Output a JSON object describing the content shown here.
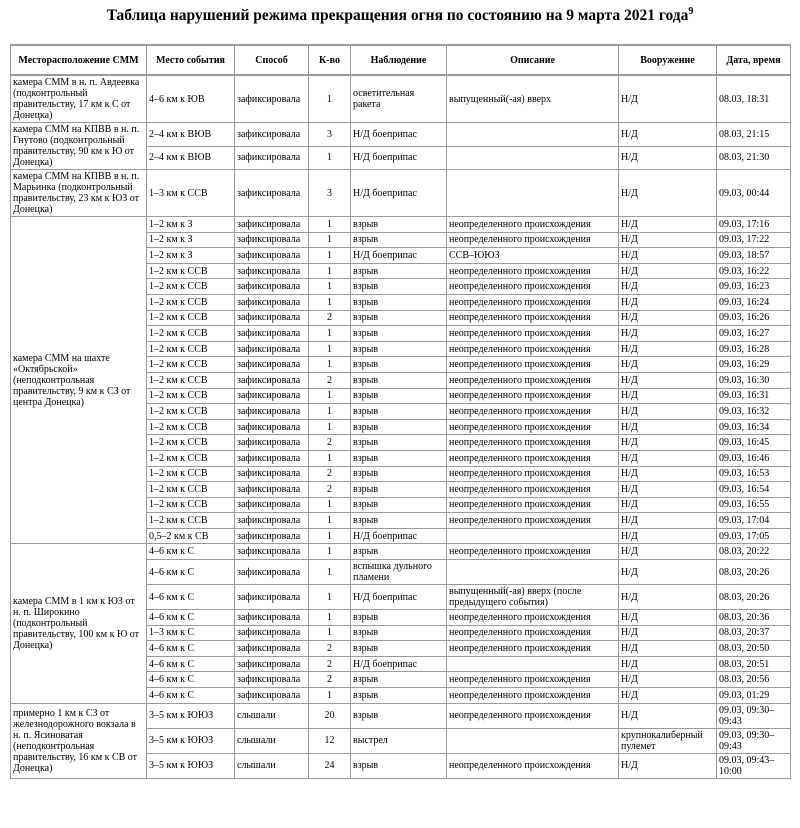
{
  "title": "Таблица нарушений режима прекращения огня по состоянию на 9 марта 2021 года",
  "title_note": "9",
  "headers": [
    "Месторасположение СММ",
    "Место события",
    "Способ",
    "К-во",
    "Наблюдение",
    "Описание",
    "Вооружение",
    "Дата, время"
  ],
  "groups": [
    {
      "location": "камера СММ в н. п. Авдеевка (подконтрольный правительству, 17 км к С от Донецка)",
      "rows": [
        [
          "4–6 км к ЮВ",
          "зафиксировала",
          1,
          "осветительная ракета",
          "выпущенный(-ая) вверх",
          "Н/Д",
          "08.03, 18:31"
        ]
      ]
    },
    {
      "location": "камера СММ на КПВВ в н. п. Гнутово (подконтрольный правительству, 90 км к Ю от Донецка)",
      "rows": [
        [
          "2–4 км к ВЮВ",
          "зафиксировала",
          3,
          "Н/Д боеприпас",
          null,
          "Н/Д",
          "08.03, 21:15"
        ],
        [
          "2–4 км к ВЮВ",
          "зафиксировала",
          1,
          "Н/Д боеприпас",
          null,
          "Н/Д",
          "08.03, 21:30"
        ]
      ]
    },
    {
      "location": "камера СММ на КПВВ в н. п. Марьинка (подконтрольный правительству, 23 км к ЮЗ от Донецка)",
      "rows": [
        [
          "1–3 км к ССВ",
          "зафиксировала",
          3,
          "Н/Д боеприпас",
          null,
          "Н/Д",
          "09.03, 00:44"
        ]
      ]
    },
    {
      "location": "камера СММ на шахте «Октябрьской» (неподконтрольная правительству, 9 км к СЗ от центра Донецка)",
      "rows": [
        [
          "1–2 км к З",
          "зафиксировала",
          1,
          "взрыв",
          "неопределенного происхождения",
          "Н/Д",
          "09.03, 17:16"
        ],
        [
          "1–2 км к З",
          "зафиксировала",
          1,
          "взрыв",
          "неопределенного происхождения",
          "Н/Д",
          "09.03, 17:22"
        ],
        [
          "1–2 км к З",
          "зафиксировала",
          1,
          "Н/Д боеприпас",
          "ССВ–ЮЮЗ",
          "Н/Д",
          "09.03, 18:57"
        ],
        [
          "1–2 км к ССВ",
          "зафиксировала",
          1,
          "взрыв",
          "неопределенного происхождения",
          "Н/Д",
          "09.03, 16:22"
        ],
        [
          "1–2 км к ССВ",
          "зафиксировала",
          1,
          "взрыв",
          "неопределенного происхождения",
          "Н/Д",
          "09.03, 16:23"
        ],
        [
          "1–2 км к ССВ",
          "зафиксировала",
          1,
          "взрыв",
          "неопределенного происхождения",
          "Н/Д",
          "09.03, 16:24"
        ],
        [
          "1–2 км к ССВ",
          "зафиксировала",
          2,
          "взрыв",
          "неопределенного происхождения",
          "Н/Д",
          "09.03, 16:26"
        ],
        [
          "1–2 км к ССВ",
          "зафиксировала",
          1,
          "взрыв",
          "неопределенного происхождения",
          "Н/Д",
          "09.03, 16:27"
        ],
        [
          "1–2 км к ССВ",
          "зафиксировала",
          1,
          "взрыв",
          "неопределенного происхождения",
          "Н/Д",
          "09.03, 16:28"
        ],
        [
          "1–2 км к ССВ",
          "зафиксировала",
          1,
          "взрыв",
          "неопределенного происхождения",
          "Н/Д",
          "09.03, 16:29"
        ],
        [
          "1–2 км к ССВ",
          "зафиксировала",
          2,
          "взрыв",
          "неопределенного происхождения",
          "Н/Д",
          "09.03, 16:30"
        ],
        [
          "1–2 км к ССВ",
          "зафиксировала",
          1,
          "взрыв",
          "неопределенного происхождения",
          "Н/Д",
          "09.03, 16:31"
        ],
        [
          "1–2 км к ССВ",
          "зафиксировала",
          1,
          "взрыв",
          "неопределенного происхождения",
          "Н/Д",
          "09.03, 16:32"
        ],
        [
          "1–2 км к ССВ",
          "зафиксировала",
          1,
          "взрыв",
          "неопределенного происхождения",
          "Н/Д",
          "09.03, 16:34"
        ],
        [
          "1–2 км к ССВ",
          "зафиксировала",
          2,
          "взрыв",
          "неопределенного происхождения",
          "Н/Д",
          "09.03, 16:45"
        ],
        [
          "1–2 км к ССВ",
          "зафиксировала",
          1,
          "взрыв",
          "неопределенного происхождения",
          "Н/Д",
          "09.03, 16:46"
        ],
        [
          "1–2 км к ССВ",
          "зафиксировала",
          2,
          "взрыв",
          "неопределенного происхождения",
          "Н/Д",
          "09.03, 16:53"
        ],
        [
          "1–2 км к ССВ",
          "зафиксировала",
          2,
          "взрыв",
          "неопределенного происхождения",
          "Н/Д",
          "09.03, 16:54"
        ],
        [
          "1–2 км к ССВ",
          "зафиксировала",
          1,
          "взрыв",
          "неопределенного происхождения",
          "Н/Д",
          "09.03, 16:55"
        ],
        [
          "1–2 км к ССВ",
          "зафиксировала",
          1,
          "взрыв",
          "неопределенного происхождения",
          "Н/Д",
          "09.03, 17:04"
        ],
        [
          "0,5–2 км к СВ",
          "зафиксировала",
          1,
          "Н/Д боеприпас",
          null,
          "Н/Д",
          "09.03, 17:05"
        ]
      ]
    },
    {
      "location": "камера СММ в 1 км к ЮЗ от н. п. Широкино (подконтрольный правительству, 100 км к Ю от Донецка)",
      "rows": [
        [
          "4–6 км к С",
          "зафиксировала",
          1,
          "взрыв",
          "неопределенного происхождения",
          "Н/Д",
          "08.03, 20:22"
        ],
        [
          "4–6 км к С",
          "зафиксировала",
          1,
          "вспышка дульного пламени",
          null,
          "Н/Д",
          "08.03, 20:26"
        ],
        [
          "4–6 км к С",
          "зафиксировала",
          1,
          "Н/Д боеприпас",
          "выпущенный(-ая) вверх (после предыдущего события)",
          "Н/Д",
          "08.03, 20:26"
        ],
        [
          "4–6 км к С",
          "зафиксировала",
          1,
          "взрыв",
          "неопределенного происхождения",
          "Н/Д",
          "08.03, 20:36"
        ],
        [
          "1–3 км к С",
          "зафиксировала",
          1,
          "взрыв",
          "неопределенного происхождения",
          "Н/Д",
          "08.03, 20:37"
        ],
        [
          "4–6 км к С",
          "зафиксировала",
          2,
          "взрыв",
          "неопределенного происхождения",
          "Н/Д",
          "08.03, 20:50"
        ],
        [
          "4–6 км к С",
          "зафиксировала",
          2,
          "Н/Д боеприпас",
          null,
          "Н/Д",
          "08.03, 20:51"
        ],
        [
          "4–6 км к С",
          "зафиксировала",
          2,
          "взрыв",
          "неопределенного происхождения",
          "Н/Д",
          "08.03, 20:56"
        ],
        [
          "4–6 км к С",
          "зафиксировала",
          1,
          "взрыв",
          "неопределенного происхождения",
          "Н/Д",
          "09.03, 01:29"
        ]
      ]
    },
    {
      "location": "примерно 1 км к СЗ от железнодорожного вокзала в н. п. Ясиноватая (неподконтрольная правительству, 16 км к СВ от Донецка)",
      "rows": [
        [
          "3–5 км к ЮЮЗ",
          "слышали",
          20,
          "взрыв",
          "неопределенного происхождения",
          "Н/Д",
          "09.03, 09:30–09:43"
        ],
        [
          "3–5 км к ЮЮЗ",
          "слышали",
          12,
          "выстрел",
          null,
          "крупнокалиберный пулемет",
          "09.03, 09:30–09:43"
        ],
        [
          "3–5 км к ЮЮЗ",
          "слышали",
          24,
          "взрыв",
          "неопределенного происхождения",
          "Н/Д",
          "09.03, 09:43–10:00"
        ]
      ]
    }
  ]
}
